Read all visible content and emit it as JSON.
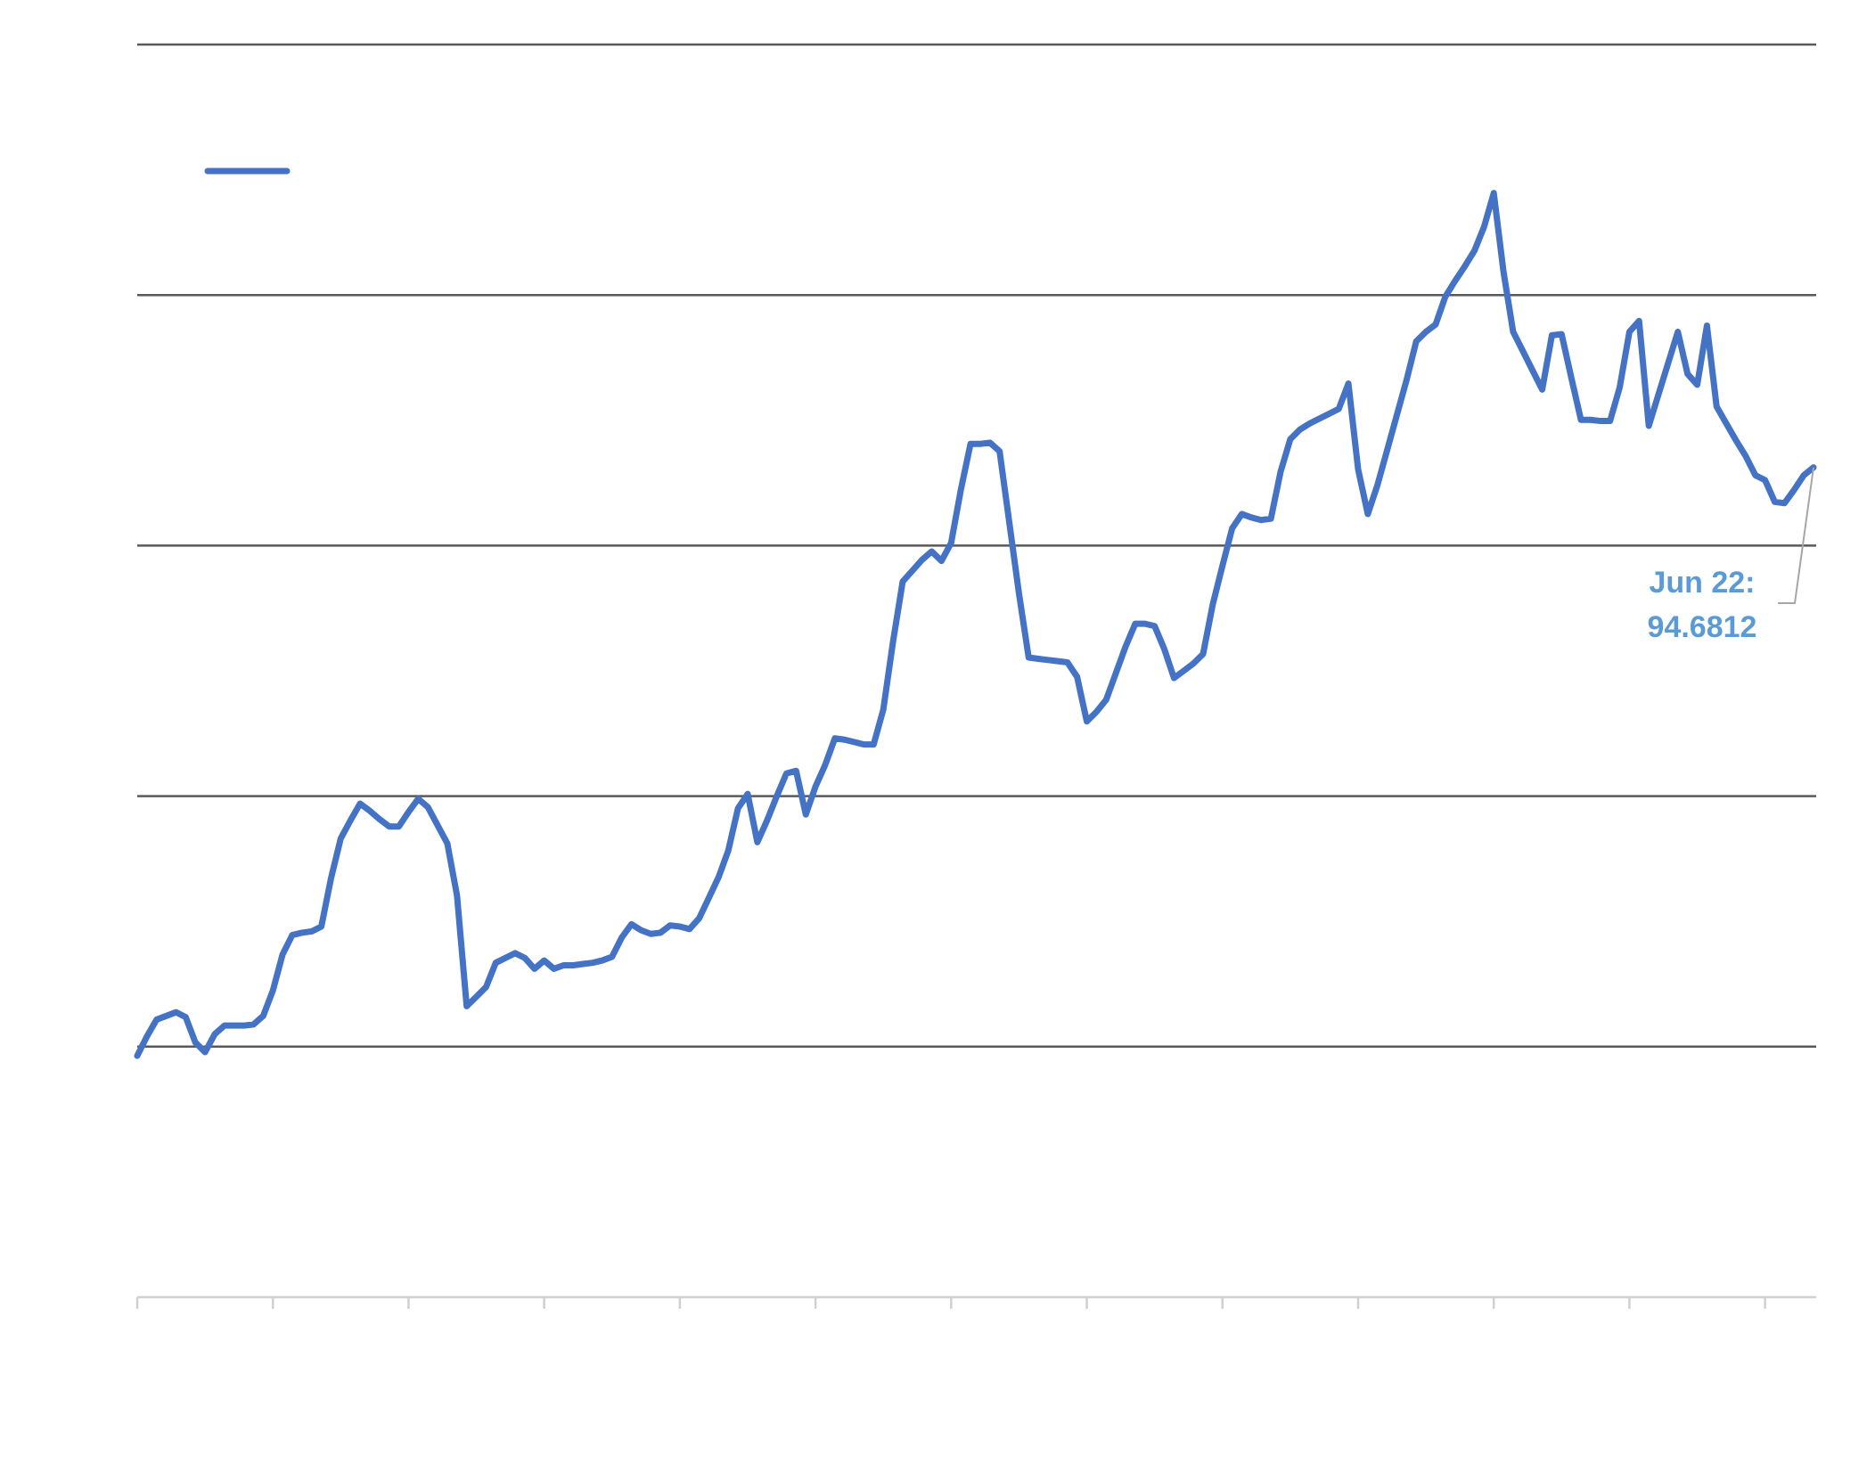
{
  "chart_data": {
    "type": "line",
    "categories": [
      null,
      null,
      null,
      null,
      null,
      null,
      null,
      null,
      null,
      null,
      null,
      null,
      null,
      null,
      null,
      null,
      null,
      null,
      null,
      null,
      null,
      null,
      null,
      null,
      null,
      null,
      null,
      null,
      null,
      null,
      null,
      null,
      null,
      null,
      null,
      null,
      null,
      null,
      null,
      null,
      null,
      null,
      null,
      null,
      null,
      null,
      null,
      null,
      null,
      null,
      null,
      null,
      null,
      null,
      null,
      null,
      null,
      null,
      null,
      null,
      null,
      null,
      null,
      null,
      null,
      null,
      null,
      null,
      null,
      null,
      null,
      null,
      null,
      null,
      null,
      null,
      null,
      null,
      null,
      null,
      null,
      null,
      null,
      null,
      null,
      null,
      null,
      null,
      null,
      null,
      null,
      null,
      null,
      null,
      null,
      null,
      null,
      null,
      null,
      null,
      null,
      null,
      null,
      null,
      null,
      null,
      null,
      null,
      null,
      null,
      null,
      null,
      null,
      null,
      null,
      null,
      null,
      null,
      null,
      null,
      null,
      null,
      null,
      null,
      null,
      null,
      null,
      null,
      null,
      null,
      null,
      null,
      null,
      null,
      null,
      null,
      null,
      null,
      null,
      null,
      null,
      null,
      null,
      null,
      null,
      null,
      null,
      null,
      null,
      null,
      null,
      null,
      null,
      null,
      null,
      null,
      null,
      null,
      null,
      null,
      null,
      null,
      null,
      null,
      null,
      null,
      null,
      null,
      null,
      null,
      null,
      null,
      null,
      null
    ],
    "series": [
      {
        "color": "#4472c4",
        "values": [
          59.45,
          60.61,
          61.62,
          61.84,
          62.06,
          61.77,
          60.25,
          59.67,
          60.75,
          61.26,
          61.26,
          61.26,
          61.33,
          61.84,
          63.36,
          65.52,
          66.68,
          66.82,
          66.9,
          67.19,
          70.08,
          72.46,
          73.54,
          74.55,
          74.12,
          73.62,
          73.18,
          73.18,
          74.05,
          74.84,
          74.34,
          73.25,
          72.17,
          69.06,
          62.42,
          62.99,
          63.57,
          65.02,
          65.31,
          65.6,
          65.31,
          64.66,
          65.16,
          64.66,
          64.87,
          64.87,
          64.95,
          65.02,
          65.16,
          65.38,
          66.53,
          67.33,
          66.97,
          66.75,
          66.82,
          67.26,
          67.19,
          67.04,
          67.69,
          68.92,
          70.15,
          71.74,
          74.27,
          75.13,
          72.24,
          73.54,
          74.99,
          76.36,
          76.51,
          73.9,
          75.57,
          76.87,
          78.46,
          78.38,
          78.24,
          78.09,
          78.09,
          80.19,
          84.24,
          87.85,
          88.5,
          89.15,
          89.65,
          89.08,
          90.16,
          93.34,
          96.09,
          96.09,
          96.16,
          95.65,
          91.39,
          87.13,
          83.3,
          83.22,
          83.15,
          83.08,
          83.01,
          82.14,
          79.47,
          80.05,
          80.77,
          82.36,
          83.95,
          85.32,
          85.32,
          85.18,
          83.8,
          82.07,
          82.5,
          82.94,
          83.51,
          86.48,
          88.79,
          91.03,
          91.89,
          91.68,
          91.53,
          91.61,
          94.42,
          96.37,
          96.95,
          97.31,
          97.6,
          97.89,
          98.18,
          99.7,
          94.57,
          91.89,
          93.63,
          95.72,
          97.82,
          99.91,
          102.23,
          102.8,
          103.24,
          104.9,
          105.84,
          106.71,
          107.65,
          109.09,
          111.11,
          106.42,
          102.8,
          101.65,
          100.49,
          99.34,
          102.59,
          102.66,
          100.06,
          97.53,
          97.53,
          97.46,
          97.46,
          99.48,
          102.8,
          103.45,
          97.17,
          99.05,
          100.93,
          102.8,
          100.28,
          99.63,
          103.17,
          98.32,
          97.31,
          96.3,
          95.36,
          94.21,
          93.92,
          92.62,
          92.54,
          93.34,
          94.21,
          94.6812
        ]
      }
    ],
    "ylim": [
      45,
      120
    ],
    "yticks": [
      45,
      60,
      75,
      90,
      105,
      120
    ],
    "show_ytick_labels": false,
    "grid": true,
    "legend": "top-left",
    "annotation": {
      "label": "Jun 22:",
      "color": "#5b9bd5"
    }
  }
}
